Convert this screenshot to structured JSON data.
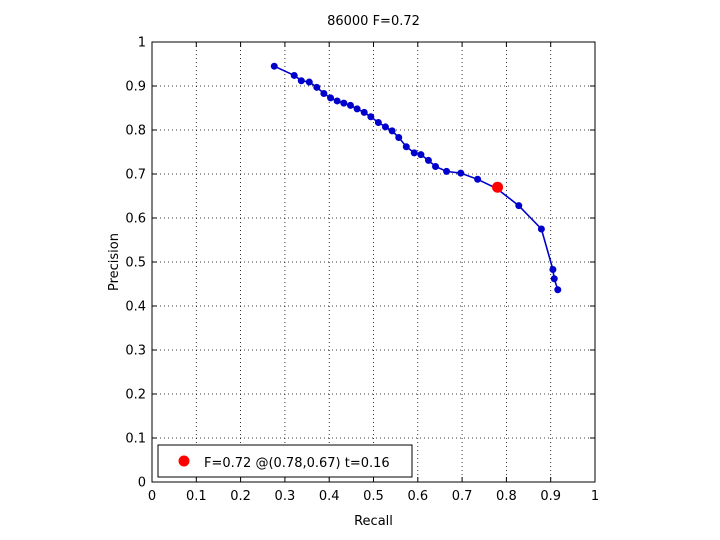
{
  "chart_data": {
    "type": "line",
    "title": "86000 F=0.72",
    "xlabel": "Recall",
    "ylabel": "Precision",
    "xlim": [
      0,
      1
    ],
    "ylim": [
      0,
      1
    ],
    "xticks": [
      "0",
      "0.1",
      "0.2",
      "0.3",
      "0.4",
      "0.5",
      "0.6",
      "0.7",
      "0.8",
      "0.9",
      "1"
    ],
    "yticks": [
      "0",
      "0.1",
      "0.2",
      "0.3",
      "0.4",
      "0.5",
      "0.6",
      "0.7",
      "0.8",
      "0.9",
      "1"
    ],
    "grid": true,
    "legend_position": "bottom-left",
    "series": [
      {
        "color": "#0000cc",
        "marker": "circle",
        "x": [
          0.276,
          0.321,
          0.337,
          0.355,
          0.372,
          0.388,
          0.403,
          0.418,
          0.433,
          0.448,
          0.463,
          0.479,
          0.494,
          0.511,
          0.527,
          0.542,
          0.557,
          0.574,
          0.592,
          0.607,
          0.624,
          0.64,
          0.665,
          0.697,
          0.735,
          0.778,
          0.828,
          0.879,
          0.905,
          0.908,
          0.916
        ],
        "y": [
          0.945,
          0.924,
          0.912,
          0.909,
          0.897,
          0.883,
          0.873,
          0.866,
          0.861,
          0.856,
          0.848,
          0.84,
          0.83,
          0.817,
          0.807,
          0.798,
          0.783,
          0.762,
          0.748,
          0.744,
          0.731,
          0.717,
          0.706,
          0.702,
          0.688,
          0.667,
          0.628,
          0.575,
          0.483,
          0.462,
          0.437
        ]
      }
    ],
    "best_point": {
      "x": 0.78,
      "y": 0.67,
      "color": "#ff0000",
      "legend_label": "F=0.72 @(0.78,0.67) t=0.16"
    }
  }
}
